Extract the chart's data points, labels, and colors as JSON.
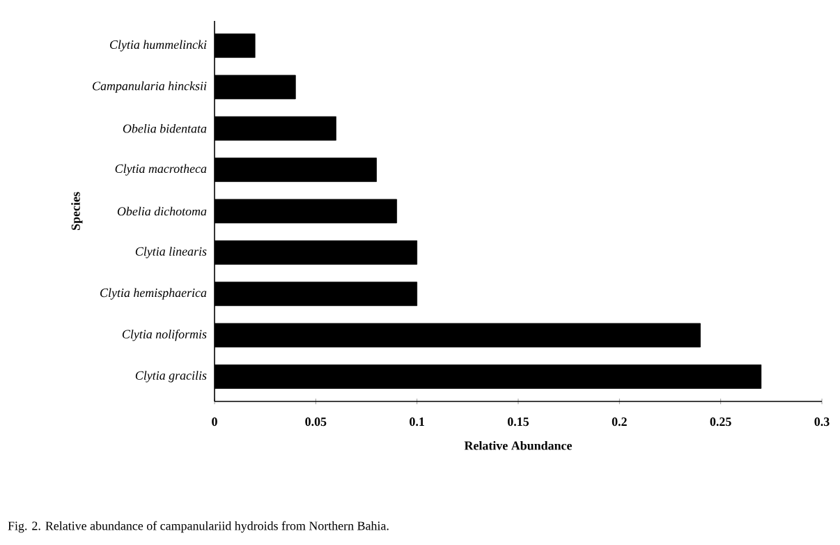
{
  "chart_data": {
    "type": "bar",
    "orientation": "horizontal",
    "categories": [
      "*Clytia hummelincki*",
      "*Campanularia hincksii*",
      "*Obelia bidentata*",
      "*Clytia macrotheca*",
      "*Obelia dichotoma*",
      "*Clytia linearis*",
      "*Clytia hemisphaerica*",
      "*Clytia noliformis*",
      "*Clytia gracilis*"
    ],
    "values": [
      0.02,
      0.04,
      0.06,
      0.08,
      0.09,
      0.1,
      0.1,
      0.24,
      0.27
    ],
    "color": "#000000",
    "xlim": [
      0,
      0.3
    ],
    "xticks": [
      0,
      0.05,
      0.1,
      0.15,
      0.2,
      0.25,
      0.3
    ],
    "xlabel": "Relative Abundance",
    "ylabel": "Species",
    "annotations": [
      "Fig. 2. Relative abundance of campanulariid hydroids from Northern Bahia."
    ]
  }
}
